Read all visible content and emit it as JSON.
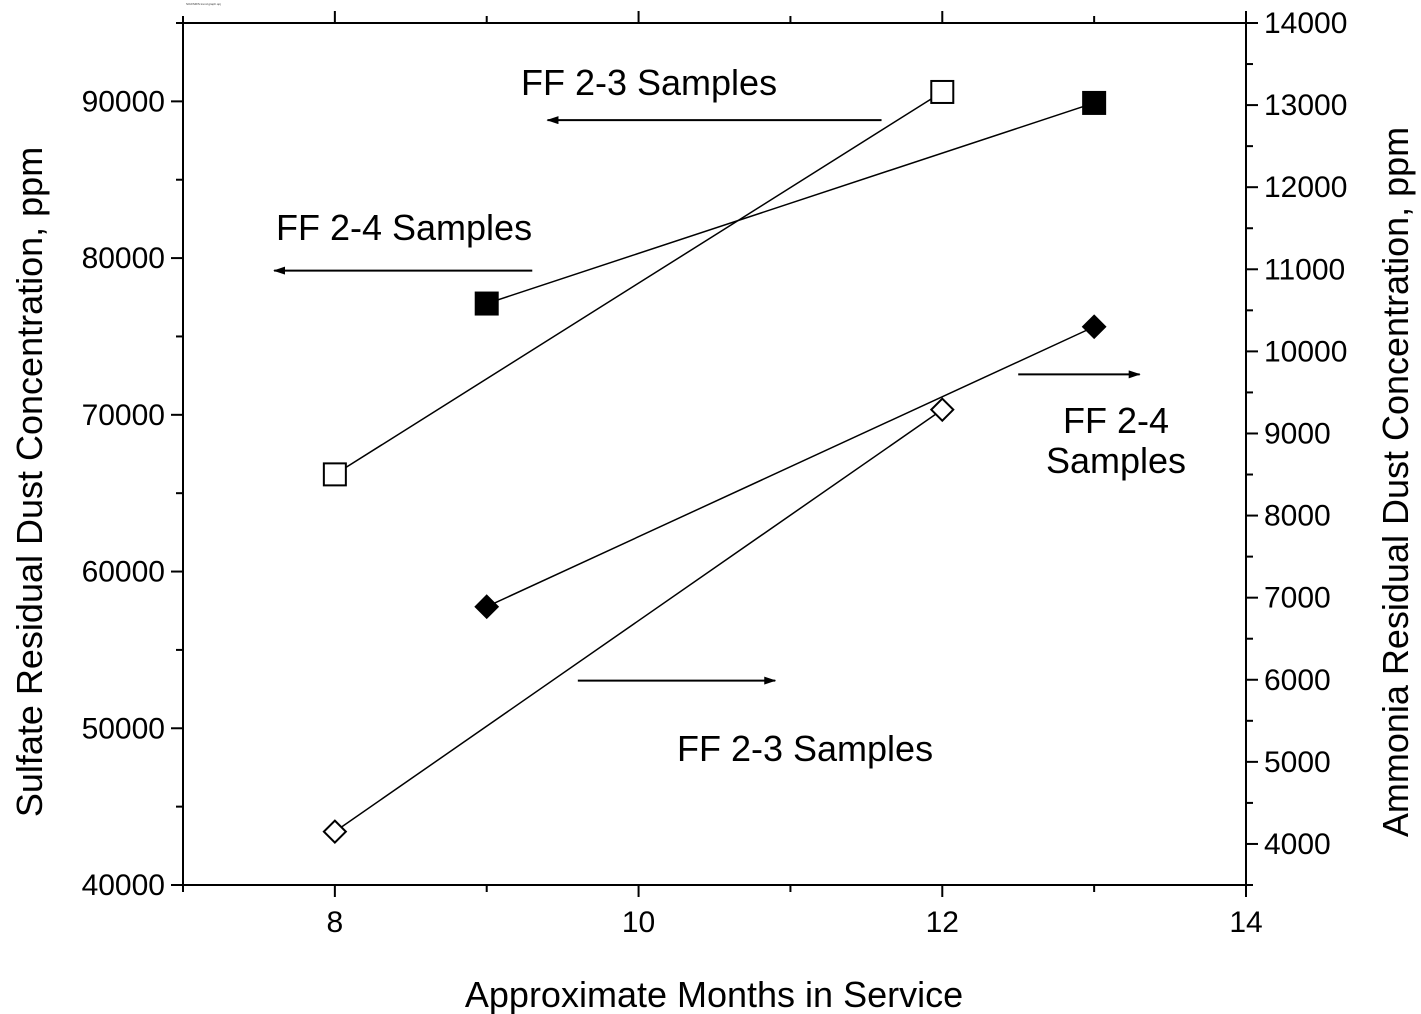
{
  "header_note": "SO2/SR/S trend graph.opj",
  "chart_data": {
    "type": "scatter",
    "xlabel": "Approximate Months in Service",
    "ylabel_left": "Sulfate Residual Dust Concentration, ppm",
    "ylabel_right": "Ammonia Residual Dust Concentration, ppm",
    "xlim": [
      7,
      14
    ],
    "ylim_left": [
      40000,
      95000
    ],
    "ylim_right": [
      3500,
      14000
    ],
    "x_ticks": [
      8,
      10,
      12,
      14
    ],
    "y_left_ticks": [
      40000,
      50000,
      60000,
      70000,
      80000,
      90000
    ],
    "y_right_ticks": [
      4000,
      5000,
      6000,
      7000,
      8000,
      9000,
      10000,
      11000,
      12000,
      13000,
      14000
    ],
    "grid": false,
    "series": [
      {
        "axis": "left",
        "marker": "square",
        "filled": false,
        "color": "#000000",
        "points": [
          {
            "x": 8,
            "y": 66200
          },
          {
            "x": 12,
            "y": 90600
          }
        ]
      },
      {
        "axis": "left",
        "marker": "square",
        "filled": true,
        "color": "#000000",
        "points": [
          {
            "x": 9,
            "y": 77100
          },
          {
            "x": 13,
            "y": 89900
          }
        ]
      },
      {
        "axis": "right",
        "marker": "diamond",
        "filled": true,
        "color": "#000000",
        "points": [
          {
            "x": 9,
            "y": 6890
          },
          {
            "x": 13,
            "y": 10300
          }
        ]
      },
      {
        "axis": "right",
        "marker": "diamond",
        "filled": false,
        "color": "#000000",
        "points": [
          {
            "x": 8,
            "y": 4150
          },
          {
            "x": 12,
            "y": 9290
          }
        ]
      }
    ],
    "annotations": [
      {
        "lines": [
          "FF 2-3 Samples"
        ],
        "arrow": "left",
        "arrow_axis": "left",
        "arrow_y": 88800,
        "arrow_x": [
          11.6,
          9.4
        ]
      },
      {
        "lines": [
          "FF 2-4 Samples"
        ],
        "arrow": "left",
        "arrow_axis": "left",
        "arrow_y": 79200,
        "arrow_x": [
          9.3,
          7.6
        ]
      },
      {
        "lines": [
          "FF 2-4",
          "Samples"
        ],
        "arrow": "right",
        "arrow_axis": "right",
        "arrow_y": 9720,
        "arrow_x": [
          12.5,
          13.3
        ]
      },
      {
        "lines": [
          "FF 2-3 Samples"
        ],
        "arrow": "right",
        "arrow_axis": "right",
        "arrow_y": 5990,
        "arrow_x": [
          9.6,
          10.9
        ]
      }
    ]
  }
}
